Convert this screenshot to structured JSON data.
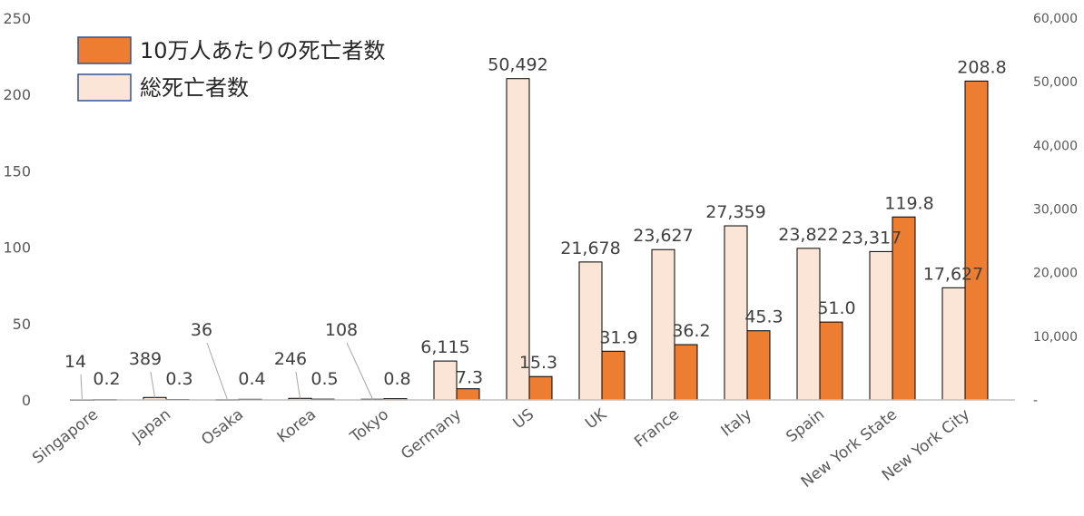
{
  "chart_data": {
    "type": "bar",
    "categories": [
      "Singapore",
      "Japan",
      "Osaka",
      "Korea",
      "Tokyo",
      "Germany",
      "US",
      "UK",
      "France",
      "Italy",
      "Spain",
      "New York State",
      "New York City"
    ],
    "series": [
      {
        "name": "総死亡者数",
        "axis": "right",
        "color": "#fbe5d6",
        "values": [
          14,
          389,
          36,
          246,
          108,
          6115,
          50492,
          21678,
          23627,
          27359,
          23822,
          23317,
          17627
        ],
        "labels": [
          "14",
          "389",
          "36",
          "246",
          "108",
          "6,115",
          "50,492",
          "21,678",
          "23,627",
          "27,359",
          "23,822",
          "23,317",
          "17,627"
        ]
      },
      {
        "name": "10万人あたりの死亡者数",
        "axis": "left",
        "color": "#ed7d31",
        "values": [
          0.2,
          0.3,
          0.4,
          0.5,
          0.8,
          7.3,
          15.3,
          31.9,
          36.2,
          45.3,
          51.0,
          119.8,
          208.8
        ],
        "labels": [
          "0.2",
          "0.3",
          "0.4",
          "0.5",
          "0.8",
          "7.3",
          "15.3",
          "31.9",
          "36.2",
          "45.3",
          "51.0",
          "119.8",
          "208.8"
        ]
      }
    ],
    "ylim": [
      0,
      250
    ],
    "yticks": [
      "0",
      "50",
      "100",
      "150",
      "200",
      "250"
    ],
    "y2lim": [
      0,
      60000
    ],
    "y2ticks": [
      "-",
      "10,000",
      "20,000",
      "30,000",
      "40,000",
      "50,000",
      "60,000"
    ],
    "grid": false,
    "legend_position": "top-left"
  }
}
